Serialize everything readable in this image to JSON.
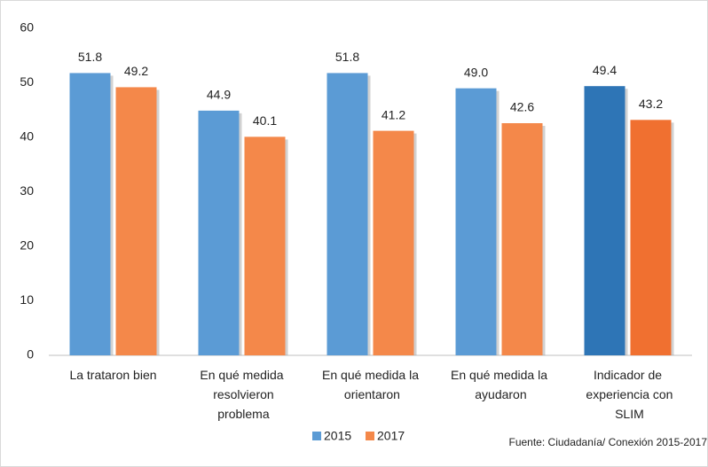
{
  "chart_data": {
    "type": "bar",
    "categories": [
      "La trataron bien",
      "En qué medida resolvieron problema",
      "En qué medida la orientaron",
      "En qué medida la ayudaron",
      "Indicador de experiencia con SLIM"
    ],
    "series": [
      {
        "name": "2015",
        "color": "#5b9bd5",
        "colors": [
          "#5b9bd5",
          "#5b9bd5",
          "#5b9bd5",
          "#5b9bd5",
          "#2e75b6"
        ],
        "values": [
          51.8,
          44.9,
          51.8,
          49,
          49.4
        ],
        "value_labels": [
          "51.8",
          "44.9",
          "51.8",
          "49.0",
          "49.4"
        ]
      },
      {
        "name": "2017",
        "color": "#f4884a",
        "colors": [
          "#f4884a",
          "#f4884a",
          "#f4884a",
          "#f4884a",
          "#f07030"
        ],
        "values": [
          49.2,
          40.1,
          41.2,
          42.6,
          43.2
        ],
        "value_labels": [
          "49.2",
          "40.1",
          "41.2",
          "42.6",
          "43.2"
        ]
      }
    ],
    "ylim": [
      0,
      60
    ],
    "yticks": [
      0,
      10,
      20,
      30,
      40,
      50,
      60
    ],
    "grid": false,
    "legend": "bottom",
    "source": "Fuente: Ciudadanía/ Conexión 2015-2017"
  }
}
